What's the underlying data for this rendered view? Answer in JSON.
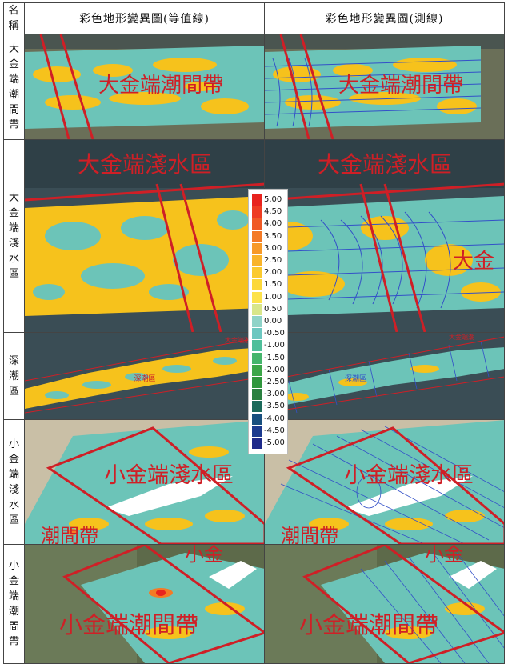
{
  "table": {
    "header": {
      "name_label": "名稱",
      "col1_title": "彩色地形變異圖(等值線)",
      "col2_title": "彩色地形變異圖(測線)"
    },
    "rows": [
      {
        "name": "大金端潮間帶",
        "overlay_text": "大金端潮間帶"
      },
      {
        "name": "大金端淺水區",
        "overlay_text": "大金端淺水區",
        "secondary_text": "大金"
      },
      {
        "name": "深潮區",
        "overlay_text": "深潮區",
        "corner_text": "大金端潮"
      },
      {
        "name": "小金端淺水區",
        "overlay_text": "小金端淺水區",
        "lower_text": "潮間帶"
      },
      {
        "name": "小金端潮間帶",
        "overlay_text": "小金端潮間帶",
        "upper_text": "小金"
      }
    ]
  },
  "legend": {
    "values": [
      "5.00",
      "4.50",
      "4.00",
      "3.50",
      "3.00",
      "2.50",
      "2.00",
      "1.50",
      "1.00",
      "0.50",
      "0.00",
      "-0.50",
      "-1.00",
      "-1.50",
      "-2.00",
      "-2.50",
      "-3.00",
      "-3.50",
      "-4.00",
      "-4.50",
      "-5.00"
    ],
    "colors": [
      "#e8231e",
      "#ee3c22",
      "#f05a25",
      "#f47a26",
      "#f79a28",
      "#f9b42a",
      "#fbca2e",
      "#fcd83a",
      "#fde24a",
      "#d8e68a",
      "#8fd3c8",
      "#6cc7c0",
      "#4fbf9a",
      "#45b56c",
      "#3ca648",
      "#2f963c",
      "#2a8040",
      "#1c6a5a",
      "#184f7e",
      "#1b3a8e",
      "#1e2a8a"
    ]
  },
  "colors": {
    "water": "#3a4d55",
    "teal": "#6cc4b8",
    "yellow": "#f6c21c",
    "red_line": "#cf1f26",
    "blue_line": "#3350c8",
    "sand": "#c9bfa6",
    "land": "#5d6a4a"
  }
}
